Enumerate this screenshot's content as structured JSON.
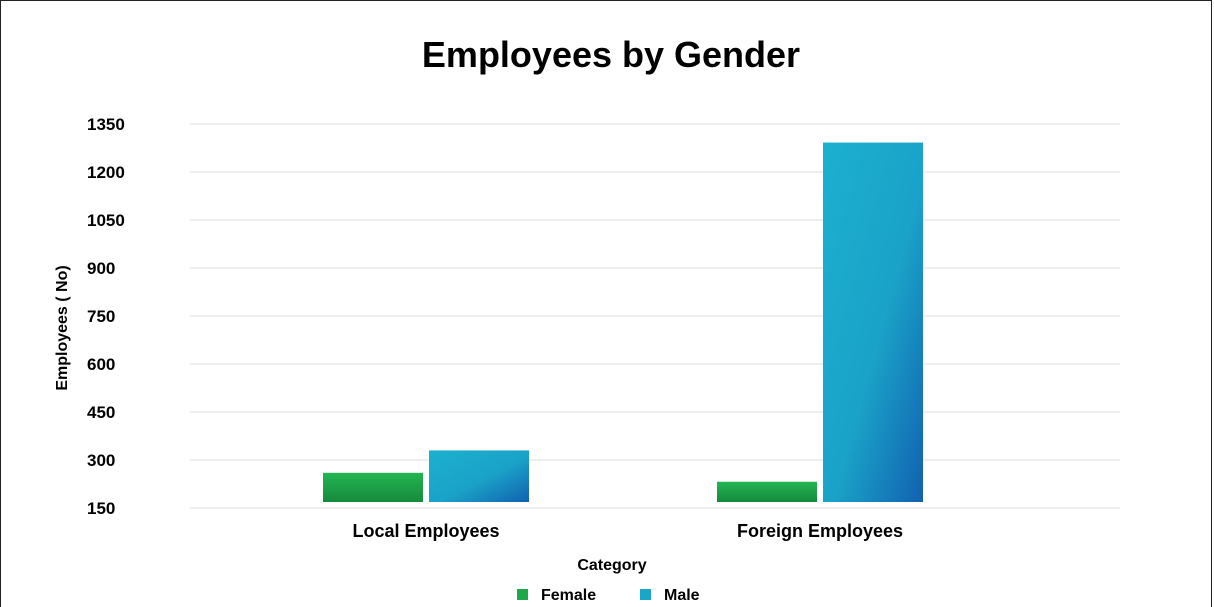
{
  "chart_data": {
    "type": "bar",
    "title": "Employees by Gender",
    "xlabel": "Category",
    "ylabel": "Employees ( No)",
    "categories": [
      "Local Employees",
      "Foreign Employees"
    ],
    "series": [
      {
        "name": "Female",
        "values": [
          260,
          232
        ],
        "color": "#1fa84a"
      },
      {
        "name": "Male",
        "values": [
          330,
          1292
        ],
        "color": "#1aa5c9"
      }
    ],
    "ylim": [
      150,
      1350
    ],
    "yticks": [
      150,
      300,
      450,
      600,
      750,
      900,
      1050,
      1200,
      1350
    ],
    "grid": true,
    "legend": "bottom"
  }
}
